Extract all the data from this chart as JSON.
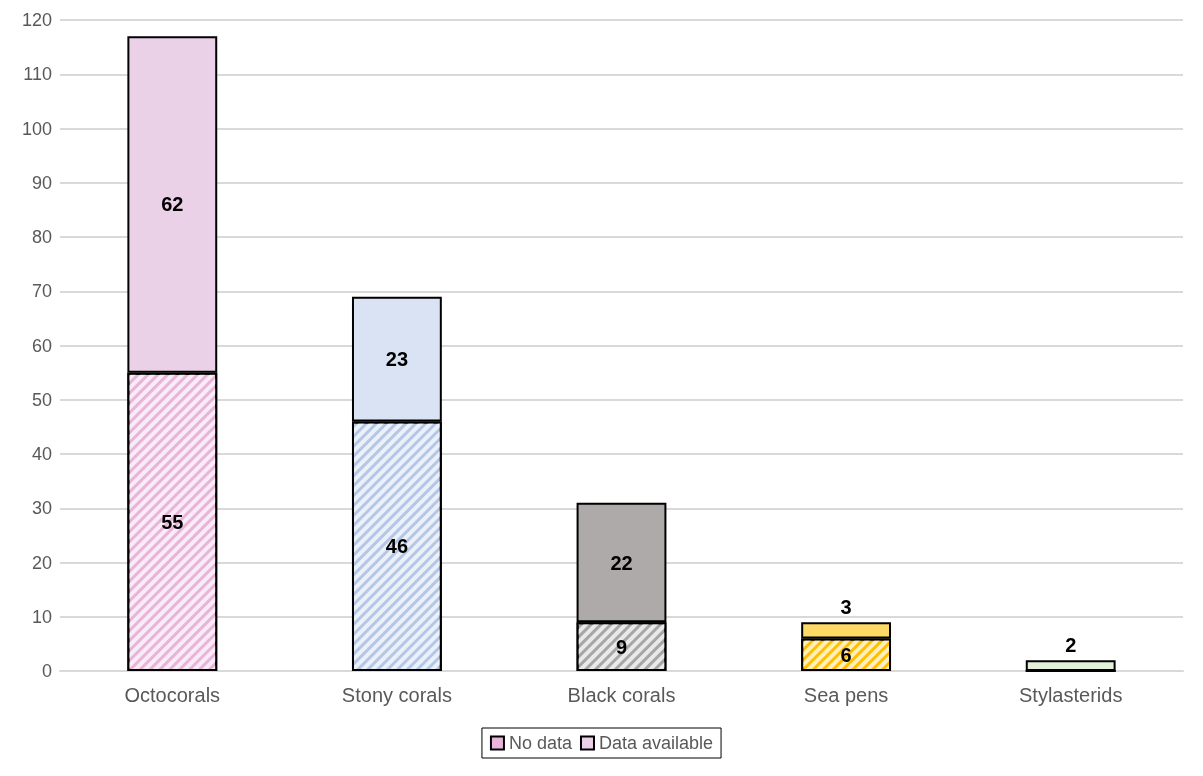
{
  "chart_data": {
    "type": "bar",
    "stacked": true,
    "categories": [
      "Octocorals",
      "Stony corals",
      "Black corals",
      "Sea pens",
      "Stylasterids"
    ],
    "series": [
      {
        "name": "No data",
        "colors": [
          "#e8b4da",
          "#b4c7e7",
          "#a6a6a6",
          "#ffc000",
          "#e2efda"
        ],
        "values": [
          55,
          46,
          9,
          6,
          0
        ],
        "value_labels": [
          "55",
          "46",
          "9",
          "6",
          null
        ]
      },
      {
        "name": "Data available",
        "colors": [
          "#ebd1e7",
          "#dae3f3",
          "#aeaaaa",
          "#ffd966",
          "#e2efda"
        ],
        "values": [
          62,
          23,
          22,
          3,
          2
        ],
        "value_labels": [
          "62",
          "23",
          "22",
          "3",
          "2"
        ]
      }
    ],
    "ylim": [
      0,
      120
    ],
    "yticks": [
      0,
      10,
      20,
      30,
      40,
      50,
      60,
      70,
      80,
      90,
      100,
      110,
      120
    ],
    "grid": "y",
    "legend": "bottom"
  }
}
